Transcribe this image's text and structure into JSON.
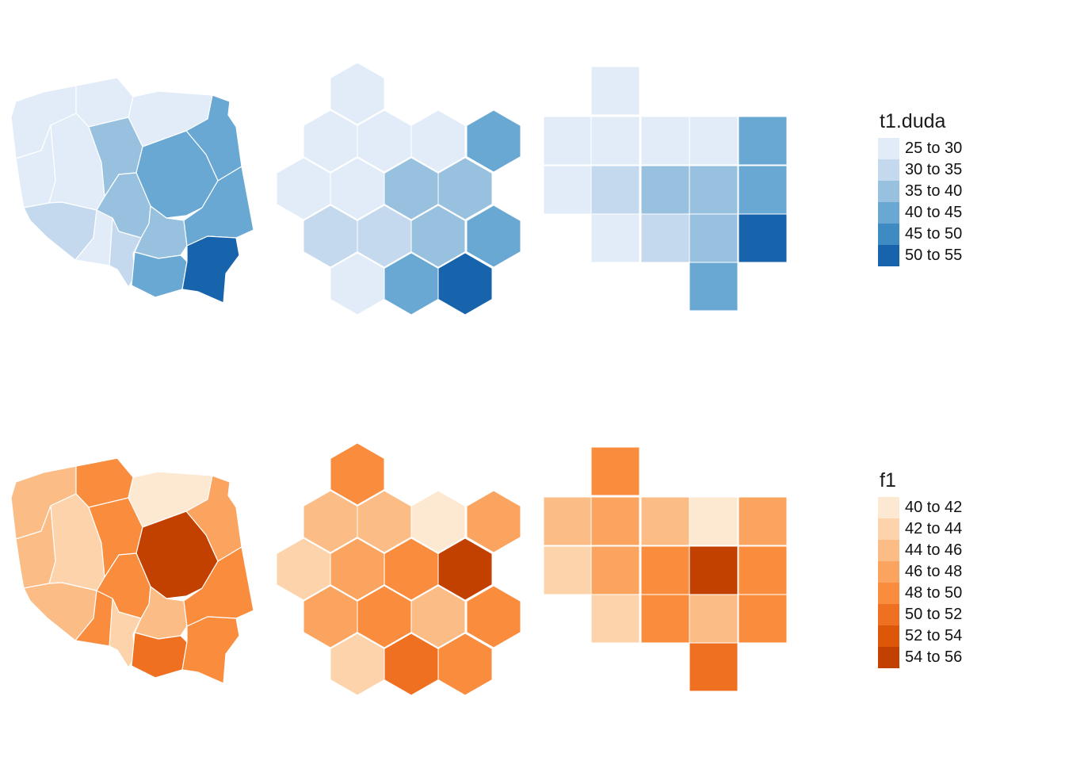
{
  "panels": [
    {
      "legend_title": "t1.duda",
      "legend": [
        {
          "label": "25 to 30",
          "color": "#e1ecf8"
        },
        {
          "label": "30 to 35",
          "color": "#c4d9ee"
        },
        {
          "label": "35 to 40",
          "color": "#98c1e0"
        },
        {
          "label": "40 to 45",
          "color": "#68a8d3"
        },
        {
          "label": "45 to 50",
          "color": "#3e8bc3"
        },
        {
          "label": "50 to 55",
          "color": "#1764ad"
        }
      ],
      "hex_classes": [
        0,
        0,
        0,
        0,
        3,
        0,
        0,
        2,
        2,
        1,
        1,
        2,
        3,
        0,
        3,
        5
      ],
      "grid_classes": [
        0,
        0,
        0,
        0,
        0,
        3,
        0,
        1,
        2,
        2,
        3,
        0,
        1,
        2,
        5,
        3
      ],
      "choro_classes": [
        0,
        0,
        0,
        3,
        0,
        0,
        2,
        3,
        1,
        0,
        2,
        1,
        2,
        3,
        3,
        5
      ]
    },
    {
      "legend_title": "f1",
      "legend": [
        {
          "label": "40 to 42",
          "color": "#fde8d2"
        },
        {
          "label": "42 to 44",
          "color": "#fdd3ab"
        },
        {
          "label": "44 to 46",
          "color": "#fcbc86"
        },
        {
          "label": "46 to 48",
          "color": "#fba45f"
        },
        {
          "label": "48 to 50",
          "color": "#f98c3d"
        },
        {
          "label": "50 to 52",
          "color": "#ef7020"
        },
        {
          "label": "52 to 54",
          "color": "#dc5707"
        },
        {
          "label": "54 to 56",
          "color": "#c24100"
        }
      ],
      "hex_classes": [
        4,
        2,
        2,
        0,
        3,
        1,
        3,
        4,
        7,
        3,
        4,
        2,
        4,
        1,
        5,
        4
      ],
      "grid_classes": [
        4,
        2,
        3,
        2,
        0,
        3,
        1,
        3,
        4,
        7,
        4,
        1,
        4,
        2,
        4,
        5
      ],
      "choro_classes": [
        2,
        4,
        0,
        3,
        2,
        1,
        4,
        7,
        2,
        4,
        4,
        1,
        2,
        4,
        5,
        4
      ]
    }
  ]
}
